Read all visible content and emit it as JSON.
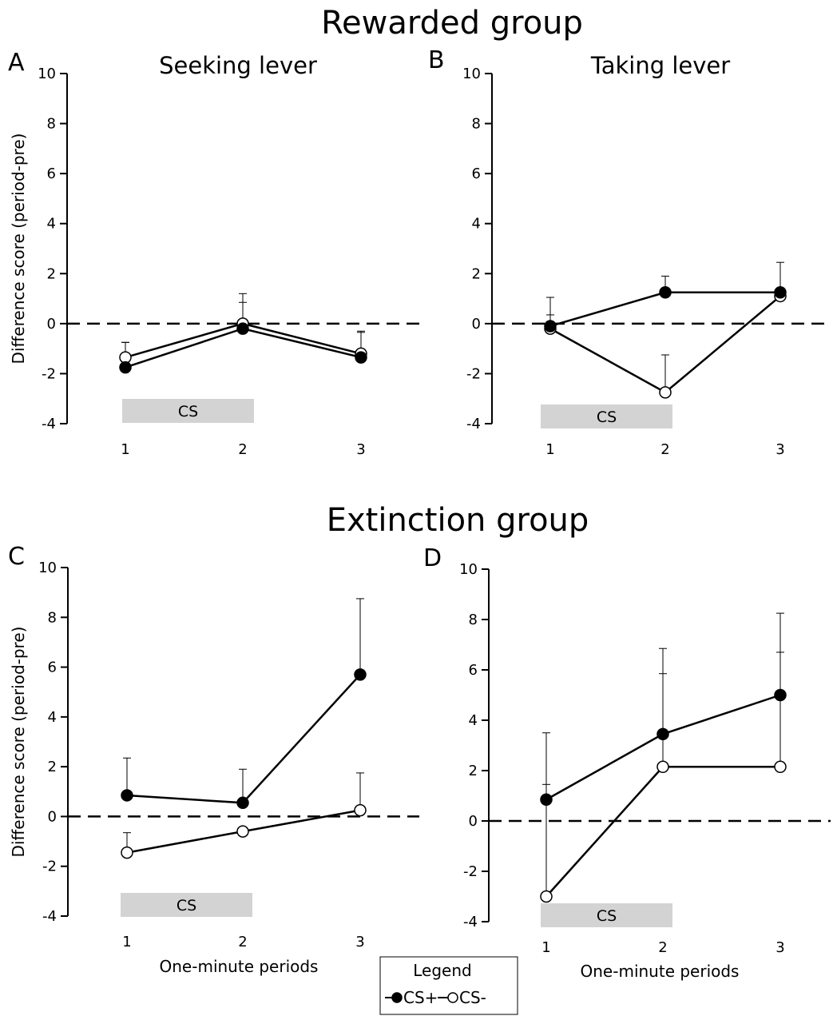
{
  "figure": {
    "groups": [
      {
        "key": "rewarded",
        "title": "Rewarded group"
      },
      {
        "key": "extinction",
        "title": "Extinction group"
      }
    ],
    "cs_bar_label": "CS",
    "legend": {
      "title": "Legend",
      "entries": [
        {
          "name": "CS+",
          "marker": "filled-circle",
          "color": "#000000"
        },
        {
          "name": "CS-",
          "marker": "open-circle",
          "color": "#ffffff"
        }
      ]
    }
  },
  "chart_data": [
    {
      "type": "line",
      "panel": "A",
      "group": "Rewarded group",
      "title": "Seeking lever",
      "ylabel": "Difference score (period-pre)",
      "xlabel": "",
      "x": [
        1,
        2,
        3
      ],
      "xticks": [
        "1",
        "2",
        "3"
      ],
      "yticks": [
        "-4",
        "-2",
        "0",
        "2",
        "4",
        "6",
        "8",
        "10"
      ],
      "ylim": [
        -4,
        10
      ],
      "reference_line": 0,
      "cs_period": [
        1,
        2
      ],
      "series": [
        {
          "name": "CS+",
          "marker": "filled",
          "values": [
            -1.75,
            -0.2,
            -1.35
          ],
          "error": [
            1.0,
            1.05,
            1.0
          ]
        },
        {
          "name": "CS-",
          "marker": "open",
          "values": [
            -1.35,
            0.0,
            -1.2
          ],
          "error": [
            0.6,
            1.2,
            0.9
          ]
        }
      ]
    },
    {
      "type": "line",
      "panel": "B",
      "group": "Rewarded group",
      "title": "Taking lever",
      "ylabel": "",
      "xlabel": "",
      "x": [
        1,
        2,
        3
      ],
      "xticks": [
        "1",
        "2",
        "3"
      ],
      "yticks": [
        "-4",
        "-2",
        "0",
        "2",
        "4",
        "6",
        "8",
        "10"
      ],
      "ylim": [
        -4,
        10
      ],
      "reference_line": 0,
      "cs_period": [
        1,
        2
      ],
      "series": [
        {
          "name": "CS+",
          "marker": "filled",
          "values": [
            -0.1,
            1.25,
            1.25
          ],
          "error": [
            0.45,
            0.65,
            1.2
          ]
        },
        {
          "name": "CS-",
          "marker": "open",
          "values": [
            -0.2,
            -2.75,
            1.1
          ],
          "error": [
            1.25,
            1.5,
            0.0
          ]
        }
      ]
    },
    {
      "type": "line",
      "panel": "C",
      "group": "Extinction group",
      "title": "",
      "ylabel": "Difference score (period-pre)",
      "xlabel": "One-minute periods",
      "x": [
        1,
        2,
        3
      ],
      "xticks": [
        "1",
        "2",
        "3"
      ],
      "yticks": [
        "-4",
        "-2",
        "0",
        "2",
        "4",
        "6",
        "8",
        "10"
      ],
      "ylim": [
        -4,
        10
      ],
      "reference_line": 0,
      "cs_period": [
        1,
        2
      ],
      "series": [
        {
          "name": "CS+",
          "marker": "filled",
          "values": [
            0.85,
            0.55,
            5.7
          ],
          "error": [
            1.5,
            1.35,
            3.05
          ]
        },
        {
          "name": "CS-",
          "marker": "open",
          "values": [
            -1.45,
            -0.6,
            0.25
          ],
          "error": [
            0.8,
            0.0,
            1.5
          ]
        }
      ]
    },
    {
      "type": "line",
      "panel": "D",
      "group": "Extinction group",
      "title": "",
      "ylabel": "",
      "xlabel": "One-minute periods",
      "x": [
        1,
        2,
        3
      ],
      "xticks": [
        "1",
        "2",
        "3"
      ],
      "yticks": [
        "-4",
        "-2",
        "0",
        "2",
        "4",
        "6",
        "8",
        "10"
      ],
      "ylim": [
        -4,
        10
      ],
      "reference_line": 0,
      "cs_period": [
        1,
        2
      ],
      "series": [
        {
          "name": "CS+",
          "marker": "filled",
          "values": [
            0.85,
            3.45,
            5.0
          ],
          "error": [
            2.65,
            3.4,
            3.25
          ]
        },
        {
          "name": "CS-",
          "marker": "open",
          "values": [
            -3.0,
            2.15,
            2.15
          ],
          "error": [
            4.45,
            3.7,
            4.55
          ]
        }
      ]
    }
  ]
}
